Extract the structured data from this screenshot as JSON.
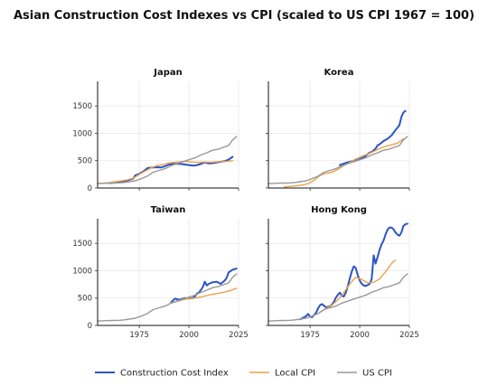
{
  "chart_data": {
    "type": "line",
    "title": "Asian Construction Cost Indexes vs CPI  (scaled to US CPI 1967 = 100)",
    "xlim": [
      1954,
      2025
    ],
    "ylim": [
      0,
      1950
    ],
    "xticks": [
      1975,
      2000,
      2025
    ],
    "yticks": [
      0,
      500,
      1000,
      1500
    ],
    "grid": true,
    "legend": {
      "placement": "bottom-center",
      "entries": [
        "Construction Cost Index",
        "Local CPI",
        "US CPI"
      ]
    },
    "colors": {
      "Construction Cost Index": "#2b54c4",
      "Local CPI": "#e8a24a",
      "US CPI": "#999999"
    },
    "panels": [
      {
        "title": "Japan",
        "series": [
          {
            "name": "Construction Cost Index",
            "x": [
              1960,
              1963,
              1966,
              1968,
              1970,
              1972,
              1973,
              1975,
              1977,
              1979,
              1980,
              1982,
              1984,
              1986,
              1988,
              1990,
              1992,
              1994,
              1996,
              1998,
              2000,
              2002,
              2004,
              2006,
              2008,
              2010,
              2012,
              2014,
              2016,
              2018,
              2020,
              2022
            ],
            "y": [
              90,
              100,
              115,
              130,
              150,
              175,
              230,
              260,
              300,
              360,
              370,
              375,
              380,
              375,
              400,
              430,
              440,
              445,
              440,
              430,
              420,
              410,
              420,
              440,
              470,
              450,
              455,
              470,
              480,
              490,
              520,
              570
            ]
          },
          {
            "name": "Local CPI",
            "x": [
              1954,
              1957,
              1960,
              1963,
              1966,
              1969,
              1972,
              1975,
              1978,
              1981,
              1984,
              1987,
              1990,
              1993,
              1996,
              1999,
              2002,
              2005,
              2008,
              2011,
              2014,
              2017,
              2020,
              2022
            ],
            "y": [
              85,
              90,
              100,
              115,
              130,
              150,
              180,
              250,
              310,
              370,
              410,
              430,
              460,
              470,
              480,
              485,
              475,
              470,
              475,
              470,
              480,
              485,
              490,
              500
            ]
          },
          {
            "name": "US CPI",
            "x": [
              1954,
              1958,
              1962,
              1965,
              1967,
              1970,
              1973,
              1976,
              1979,
              1982,
              1985,
              1988,
              1991,
              1994,
              1997,
              2000,
              2003,
              2006,
              2009,
              2012,
              2015,
              2018,
              2020,
              2022,
              2024
            ],
            "y": [
              80,
              87,
              91,
              95,
              100,
              116,
              133,
              170,
              217,
              289,
              322,
              354,
              408,
              444,
              482,
              517,
              552,
              605,
              645,
              690,
              712,
              754,
              776,
              880,
              940
            ]
          }
        ]
      },
      {
        "title": "Korea",
        "series": [
          {
            "name": "Construction Cost Index",
            "x": [
              1990,
              1993,
              1996,
              1999,
              2000,
              2002,
              2004,
              2005,
              2006,
              2008,
              2009,
              2010,
              2012,
              2014,
              2016,
              2018,
              2019,
              2020,
              2021,
              2022,
              2023
            ],
            "y": [
              420,
              460,
              490,
              510,
              530,
              560,
              620,
              650,
              660,
              720,
              780,
              800,
              860,
              900,
              960,
              1060,
              1100,
              1150,
              1300,
              1380,
              1410
            ]
          },
          {
            "name": "Local CPI",
            "x": [
              1962,
              1965,
              1968,
              1971,
              1974,
              1977,
              1980,
              1983,
              1986,
              1989,
              1992,
              1995,
              1998,
              2001,
              2004,
              2007,
              2010,
              2013,
              2016,
              2019,
              2022
            ],
            "y": [
              20,
              30,
              40,
              55,
              80,
              140,
              230,
              270,
              290,
              340,
              410,
              470,
              530,
              580,
              620,
              670,
              720,
              760,
              790,
              820,
              900
            ]
          },
          {
            "name": "US CPI",
            "x": [
              1954,
              1958,
              1962,
              1965,
              1967,
              1970,
              1973,
              1976,
              1979,
              1982,
              1985,
              1988,
              1991,
              1994,
              1997,
              2000,
              2003,
              2006,
              2009,
              2012,
              2015,
              2018,
              2020,
              2022,
              2024
            ],
            "y": [
              80,
              87,
              91,
              95,
              100,
              116,
              133,
              170,
              217,
              289,
              322,
              354,
              408,
              444,
              482,
              517,
              552,
              605,
              645,
              690,
              712,
              754,
              776,
              880,
              940
            ]
          }
        ]
      },
      {
        "title": "Taiwan",
        "series": [
          {
            "name": "Construction Cost Index",
            "x": [
              1991,
              1992,
              1993,
              1994,
              1995,
              1996,
              1998,
              2000,
              2002,
              2003,
              2004,
              2005,
              2006,
              2007,
              2008,
              2009,
              2010,
              2012,
              2014,
              2016,
              2018,
              2019,
              2020,
              2022,
              2024
            ],
            "y": [
              420,
              460,
              490,
              480,
              470,
              480,
              500,
              490,
              500,
              530,
              580,
              600,
              650,
              700,
              800,
              730,
              760,
              790,
              800,
              760,
              820,
              870,
              970,
              1020,
              1040
            ]
          },
          {
            "name": "Local CPI",
            "x": [
              1991,
              1994,
              1997,
              2000,
              2003,
              2006,
              2009,
              2012,
              2015,
              2018,
              2021,
              2024
            ],
            "y": [
              410,
              440,
              470,
              490,
              500,
              520,
              545,
              570,
              590,
              610,
              640,
              680
            ]
          },
          {
            "name": "US CPI",
            "x": [
              1954,
              1958,
              1962,
              1965,
              1967,
              1970,
              1973,
              1976,
              1979,
              1982,
              1985,
              1988,
              1991,
              1994,
              1997,
              2000,
              2003,
              2006,
              2009,
              2012,
              2015,
              2018,
              2020,
              2022,
              2024
            ],
            "y": [
              80,
              87,
              91,
              95,
              100,
              116,
              133,
              170,
              217,
              289,
              322,
              354,
              408,
              444,
              482,
              517,
              552,
              605,
              645,
              690,
              712,
              754,
              776,
              880,
              940
            ]
          }
        ]
      },
      {
        "title": "Hong Kong",
        "series": [
          {
            "name": "Construction Cost Index",
            "x": [
              1970,
              1971,
              1972,
              1973,
              1974,
              1975,
              1976,
              1977,
              1978,
              1979,
              1980,
              1981,
              1982,
              1983,
              1984,
              1985,
              1986,
              1987,
              1988,
              1989,
              1990,
              1991,
              1992,
              1993,
              1994,
              1995,
              1996,
              1997,
              1998,
              1999,
              2000,
              2001,
              2002,
              2003,
              2004,
              2005,
              2006,
              2007,
              2008,
              2009,
              2010,
              2011,
              2012,
              2013,
              2014,
              2015,
              2016,
              2017,
              2018,
              2019,
              2020,
              2021,
              2022,
              2023,
              2024
            ],
            "y": [
              110,
              130,
              150,
              170,
              210,
              160,
              150,
              190,
              230,
              310,
              370,
              390,
              360,
              330,
              340,
              350,
              380,
              430,
              510,
              560,
              600,
              540,
              530,
              600,
              720,
              860,
              990,
              1080,
              1050,
              920,
              820,
              760,
              730,
              720,
              740,
              760,
              850,
              1280,
              1130,
              1250,
              1380,
              1480,
              1550,
              1660,
              1750,
              1790,
              1790,
              1760,
              1700,
              1660,
              1640,
              1700,
              1820,
              1850,
              1860
            ]
          },
          {
            "name": "Local CPI",
            "x": [
              1980,
              1983,
              1986,
              1989,
              1992,
              1995,
              1998,
              2001,
              2004,
              2007,
              2010,
              2013,
              2016,
              2017,
              2018
            ],
            "y": [
              240,
              310,
              370,
              470,
              600,
              760,
              880,
              840,
              780,
              790,
              850,
              980,
              1130,
              1170,
              1190
            ]
          },
          {
            "name": "US CPI",
            "x": [
              1954,
              1958,
              1962,
              1965,
              1967,
              1970,
              1973,
              1976,
              1979,
              1982,
              1985,
              1988,
              1991,
              1994,
              1997,
              2000,
              2003,
              2006,
              2009,
              2012,
              2015,
              2018,
              2020,
              2022,
              2024
            ],
            "y": [
              80,
              87,
              91,
              95,
              100,
              116,
              133,
              170,
              217,
              289,
              322,
              354,
              408,
              444,
              482,
              517,
              552,
              605,
              645,
              690,
              712,
              754,
              776,
              880,
              940
            ]
          }
        ]
      }
    ]
  }
}
